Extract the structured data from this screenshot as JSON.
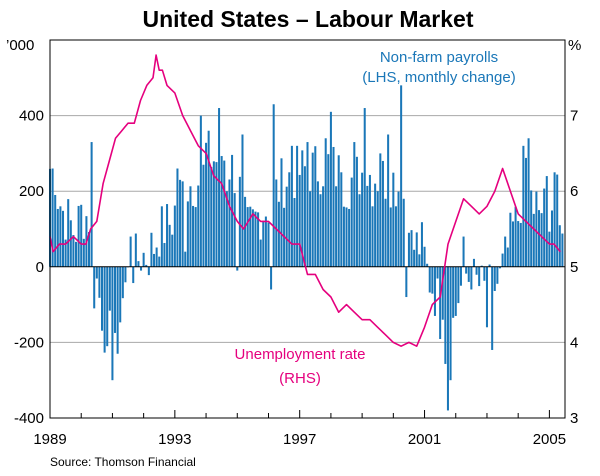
{
  "chart_data": {
    "type": "bar+line",
    "title": "United States – Labour Market",
    "source": "Source: Thomson Financial",
    "left_axis": {
      "unit": "’000",
      "min": -400,
      "max": 600,
      "ticks": [
        -400,
        -200,
        0,
        200,
        400
      ],
      "tick_labels": [
        "-400",
        "-200",
        "0",
        "200",
        "400"
      ]
    },
    "right_axis": {
      "unit": "%",
      "min": 3,
      "max": 8,
      "ticks": [
        3,
        4,
        5,
        6,
        7
      ],
      "tick_labels": [
        "3",
        "4",
        "5",
        "6",
        "7"
      ]
    },
    "x_axis": {
      "start": 1989.0,
      "end": 2005.5,
      "ticks": [
        1989,
        1993,
        1997,
        2001,
        2005
      ],
      "tick_labels": [
        "1989",
        "1993",
        "1997",
        "2001",
        "2005"
      ]
    },
    "gridlines": [
      -200,
      200,
      400
    ],
    "series": [
      {
        "name": "Non-farm payrolls",
        "label_line1": "Non-farm payrolls",
        "label_line2": "(LHS, monthly change)",
        "axis": "left",
        "type": "bar",
        "color": "#1a77b8",
        "anchors": [
          [
            1989.0,
            260
          ],
          [
            1989.4,
            150
          ],
          [
            1989.8,
            90
          ],
          [
            1990.0,
            140
          ],
          [
            1990.3,
            130
          ],
          [
            1990.5,
            -40
          ],
          [
            1990.75,
            -160
          ],
          [
            1991.0,
            -200
          ],
          [
            1991.3,
            -80
          ],
          [
            1991.6,
            0
          ],
          [
            1991.9,
            30
          ],
          [
            1992.2,
            30
          ],
          [
            1992.5,
            90
          ],
          [
            1992.9,
            120
          ],
          [
            1993.2,
            200
          ],
          [
            1993.5,
            220
          ],
          [
            1993.8,
            230
          ],
          [
            1994.0,
            260
          ],
          [
            1994.5,
            300
          ],
          [
            1995.0,
            240
          ],
          [
            1995.3,
            90
          ],
          [
            1995.7,
            140
          ],
          [
            1996.0,
            160
          ],
          [
            1996.5,
            230
          ],
          [
            1997.0,
            250
          ],
          [
            1997.5,
            260
          ],
          [
            1998.0,
            270
          ],
          [
            1998.5,
            220
          ],
          [
            1999.0,
            250
          ],
          [
            1999.5,
            240
          ],
          [
            2000.0,
            230
          ],
          [
            2000.3,
            200
          ],
          [
            2000.6,
            50
          ],
          [
            2000.9,
            60
          ],
          [
            2001.1,
            -20
          ],
          [
            2001.4,
            -80
          ],
          [
            2001.75,
            -250
          ],
          [
            2002.0,
            -100
          ],
          [
            2002.3,
            -20
          ],
          [
            2002.6,
            -40
          ],
          [
            2003.0,
            -70
          ],
          [
            2003.4,
            -40
          ],
          [
            2003.75,
            70
          ],
          [
            2004.0,
            130
          ],
          [
            2004.25,
            280
          ],
          [
            2004.6,
            150
          ],
          [
            2004.9,
            150
          ],
          [
            2005.2,
            180
          ],
          [
            2005.4,
            140
          ]
        ],
        "spikes": [
          [
            1989.05,
            260
          ],
          [
            1989.15,
            190
          ],
          [
            1990.3,
            330
          ],
          [
            1990.4,
            -110
          ],
          [
            1990.8,
            -210
          ],
          [
            1991.0,
            -300
          ],
          [
            1991.2,
            -230
          ],
          [
            1991.6,
            80
          ],
          [
            1992.25,
            90
          ],
          [
            1993.1,
            260
          ],
          [
            1993.35,
            40
          ],
          [
            1993.8,
            400
          ],
          [
            1994.05,
            360
          ],
          [
            1994.4,
            420
          ],
          [
            1994.7,
            200
          ],
          [
            1995.0,
            -10
          ],
          [
            1995.15,
            350
          ],
          [
            1996.05,
            -60
          ],
          [
            1996.2,
            430
          ],
          [
            1996.75,
            320
          ],
          [
            1997.25,
            330
          ],
          [
            1997.8,
            340
          ],
          [
            1998.0,
            410
          ],
          [
            1998.3,
            250
          ],
          [
            1998.75,
            330
          ],
          [
            1999.1,
            420
          ],
          [
            1999.3,
            160
          ],
          [
            1999.6,
            300
          ],
          [
            1999.85,
            350
          ],
          [
            2000.25,
            480
          ],
          [
            2000.4,
            -80
          ],
          [
            2000.5,
            90
          ],
          [
            2001.6,
            -140
          ],
          [
            2001.75,
            -380
          ],
          [
            2001.85,
            -300
          ],
          [
            2002.0,
            -130
          ],
          [
            2002.25,
            80
          ],
          [
            2002.5,
            -60
          ],
          [
            2003.0,
            -160
          ],
          [
            2003.15,
            -220
          ],
          [
            2003.8,
            120
          ],
          [
            2004.15,
            320
          ],
          [
            2004.3,
            340
          ],
          [
            2004.5,
            140
          ],
          [
            2004.9,
            240
          ],
          [
            2005.15,
            250
          ],
          [
            2005.3,
            110
          ]
        ]
      },
      {
        "name": "Unemployment rate",
        "label_line1": "Unemployment rate",
        "label_line2": "(RHS)",
        "axis": "right",
        "type": "line",
        "color": "#e5007e",
        "points": [
          [
            1989.0,
            5.4
          ],
          [
            1989.1,
            5.2
          ],
          [
            1989.3,
            5.3
          ],
          [
            1989.5,
            5.3
          ],
          [
            1989.75,
            5.4
          ],
          [
            1990.0,
            5.3
          ],
          [
            1990.15,
            5.3
          ],
          [
            1990.3,
            5.5
          ],
          [
            1990.5,
            5.6
          ],
          [
            1990.7,
            6.1
          ],
          [
            1990.9,
            6.4
          ],
          [
            1991.1,
            6.7
          ],
          [
            1991.3,
            6.8
          ],
          [
            1991.5,
            6.9
          ],
          [
            1991.7,
            6.9
          ],
          [
            1991.9,
            7.2
          ],
          [
            1992.1,
            7.4
          ],
          [
            1992.3,
            7.5
          ],
          [
            1992.4,
            7.8
          ],
          [
            1992.5,
            7.6
          ],
          [
            1992.6,
            7.6
          ],
          [
            1992.75,
            7.4
          ],
          [
            1993.0,
            7.3
          ],
          [
            1993.25,
            7.0
          ],
          [
            1993.5,
            6.8
          ],
          [
            1993.75,
            6.6
          ],
          [
            1994.0,
            6.5
          ],
          [
            1994.25,
            6.2
          ],
          [
            1994.5,
            6.1
          ],
          [
            1994.75,
            5.8
          ],
          [
            1995.0,
            5.6
          ],
          [
            1995.2,
            5.5
          ],
          [
            1995.5,
            5.7
          ],
          [
            1995.75,
            5.6
          ],
          [
            1996.0,
            5.6
          ],
          [
            1996.25,
            5.5
          ],
          [
            1996.5,
            5.4
          ],
          [
            1996.75,
            5.3
          ],
          [
            1997.0,
            5.3
          ],
          [
            1997.25,
            4.9
          ],
          [
            1997.5,
            4.9
          ],
          [
            1997.75,
            4.7
          ],
          [
            1998.0,
            4.6
          ],
          [
            1998.25,
            4.4
          ],
          [
            1998.5,
            4.5
          ],
          [
            1998.75,
            4.4
          ],
          [
            1999.0,
            4.3
          ],
          [
            1999.25,
            4.3
          ],
          [
            1999.5,
            4.2
          ],
          [
            1999.75,
            4.1
          ],
          [
            2000.0,
            4.0
          ],
          [
            2000.25,
            3.95
          ],
          [
            2000.5,
            4.0
          ],
          [
            2000.75,
            3.95
          ],
          [
            2001.0,
            4.2
          ],
          [
            2001.25,
            4.5
          ],
          [
            2001.5,
            4.6
          ],
          [
            2001.75,
            5.3
          ],
          [
            2002.0,
            5.6
          ],
          [
            2002.25,
            5.9
          ],
          [
            2002.5,
            5.8
          ],
          [
            2002.75,
            5.7
          ],
          [
            2003.0,
            5.8
          ],
          [
            2003.25,
            6.0
          ],
          [
            2003.5,
            6.3
          ],
          [
            2003.75,
            6.0
          ],
          [
            2004.0,
            5.7
          ],
          [
            2004.25,
            5.6
          ],
          [
            2004.5,
            5.5
          ],
          [
            2004.75,
            5.4
          ],
          [
            2005.0,
            5.3
          ],
          [
            2005.15,
            5.3
          ],
          [
            2005.35,
            5.2
          ]
        ]
      }
    ]
  }
}
